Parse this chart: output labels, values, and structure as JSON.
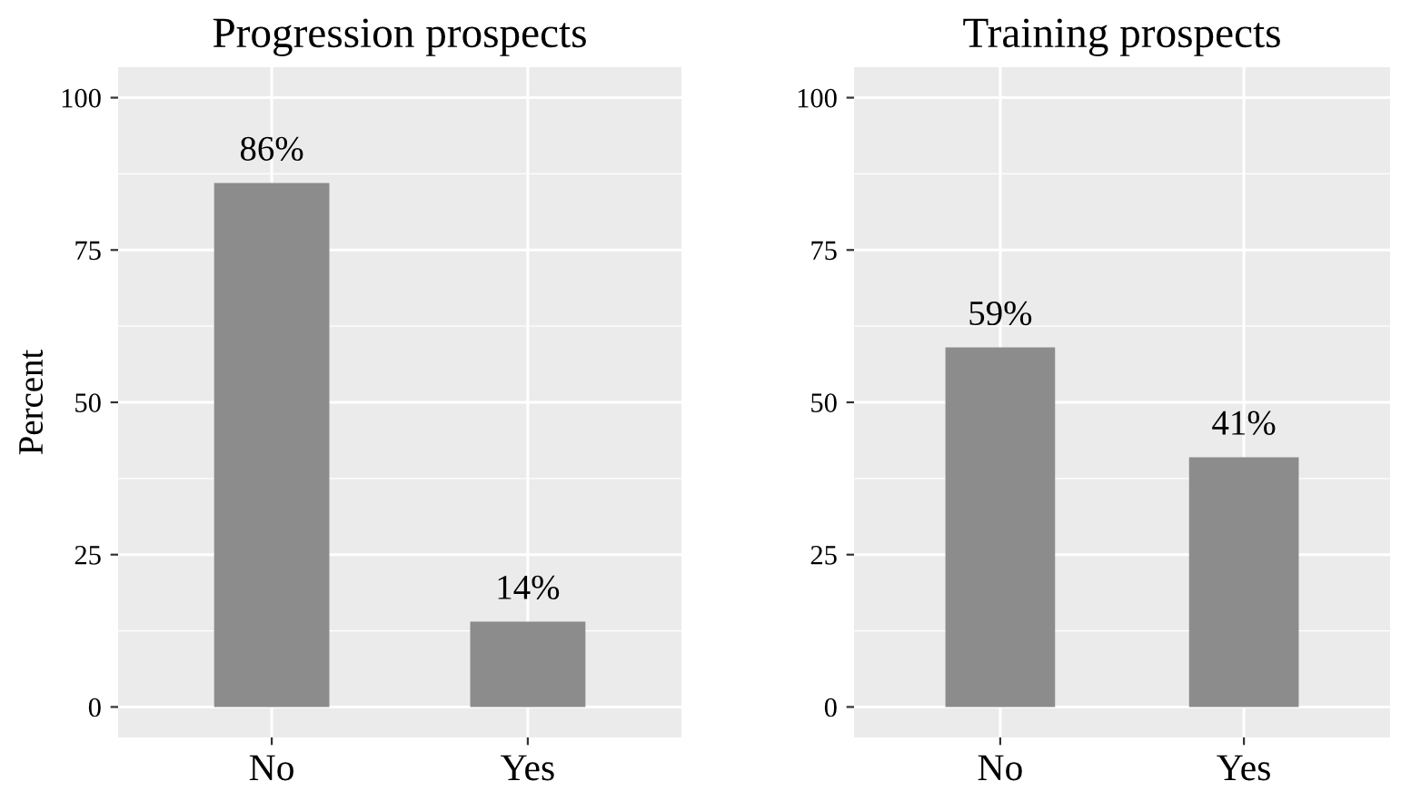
{
  "chart_data": [
    {
      "type": "bar",
      "title": "Progression prospects",
      "ylabel": "Percent",
      "categories": [
        "No",
        "Yes"
      ],
      "values": [
        86,
        14
      ],
      "value_labels": [
        "86%",
        "14%"
      ],
      "color": "#8c8c8c",
      "ylim": [
        -5,
        105
      ],
      "yticks": [
        0,
        25,
        50,
        75,
        100
      ],
      "grid": true
    },
    {
      "type": "bar",
      "title": "Training prospects",
      "categories": [
        "No",
        "Yes"
      ],
      "values": [
        59,
        41
      ],
      "value_labels": [
        "59%",
        "41%"
      ],
      "color": "#8c8c8c",
      "ylim": [
        -5,
        105
      ],
      "yticks": [
        0,
        25,
        50,
        75,
        100
      ],
      "grid": true
    }
  ]
}
